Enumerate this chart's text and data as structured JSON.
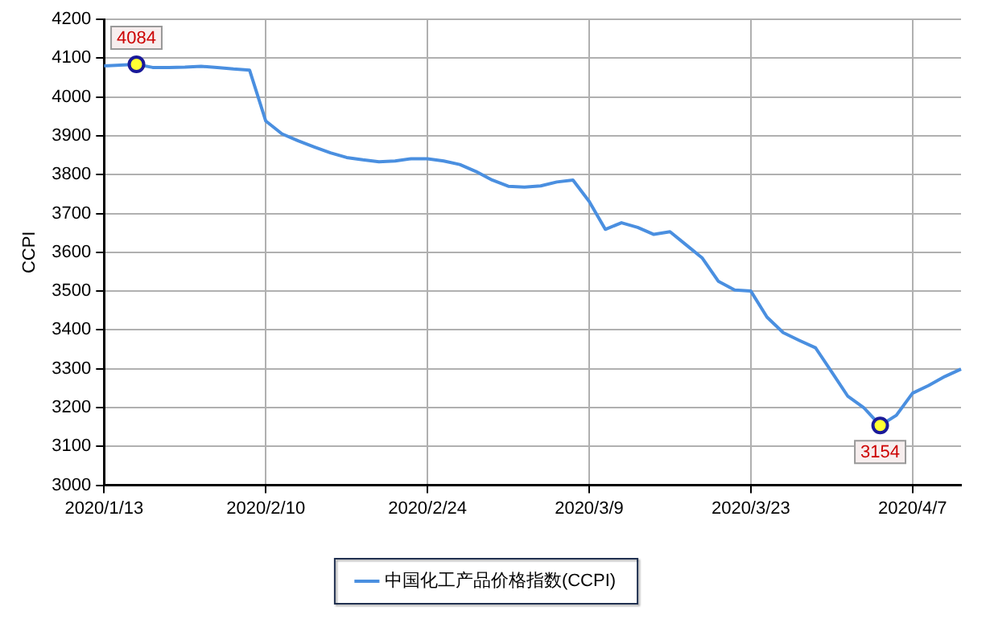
{
  "chart_data": {
    "type": "line",
    "ylabel": "CCPI",
    "categories": [
      "2020/1/13",
      null,
      null,
      null,
      null,
      null,
      null,
      null,
      null,
      null,
      "2020/2/10",
      null,
      null,
      null,
      null,
      null,
      null,
      null,
      null,
      null,
      "2020/2/24",
      null,
      null,
      null,
      null,
      null,
      null,
      null,
      null,
      null,
      "2020/3/9",
      null,
      null,
      null,
      null,
      null,
      null,
      null,
      null,
      null,
      "2020/3/23",
      null,
      null,
      null,
      null,
      null,
      null,
      null,
      null,
      null,
      "2020/4/7",
      null,
      null,
      null
    ],
    "series": [
      {
        "name": "中国化工产品价格指数(CCPI)",
        "color": "#4a8fe0",
        "values": [
          4080,
          4082,
          4084,
          4076,
          4076,
          4077,
          4079,
          4076,
          4072,
          4069,
          3938,
          3905,
          3887,
          3871,
          3856,
          3844,
          3838,
          3833,
          3835,
          3841,
          3841,
          3835,
          3826,
          3808,
          3786,
          3770,
          3768,
          3771,
          3781,
          3786,
          3731,
          3659,
          3676,
          3664,
          3646,
          3653,
          3619,
          3585,
          3525,
          3503,
          3500,
          3433,
          3393,
          3373,
          3354,
          3292,
          3229,
          3199,
          3154,
          3180,
          3237,
          3257,
          3280,
          3299
        ],
        "value_labels": [
          null,
          null,
          "4084",
          null,
          null,
          null,
          null,
          null,
          null,
          null,
          null,
          null,
          null,
          null,
          null,
          null,
          null,
          null,
          null,
          null,
          null,
          null,
          null,
          null,
          null,
          null,
          null,
          null,
          null,
          null,
          null,
          null,
          null,
          null,
          null,
          null,
          null,
          null,
          null,
          null,
          null,
          null,
          null,
          null,
          null,
          null,
          null,
          null,
          "3154",
          null,
          null,
          null,
          null,
          null
        ]
      }
    ],
    "ylim": [
      3000,
      4200
    ],
    "yticks": [
      3000,
      3100,
      3200,
      3300,
      3400,
      3500,
      3600,
      3700,
      3800,
      3900,
      4000,
      4100,
      4200
    ],
    "grid": true,
    "legend": "bottom",
    "marker": "none",
    "line_style": "solid"
  }
}
